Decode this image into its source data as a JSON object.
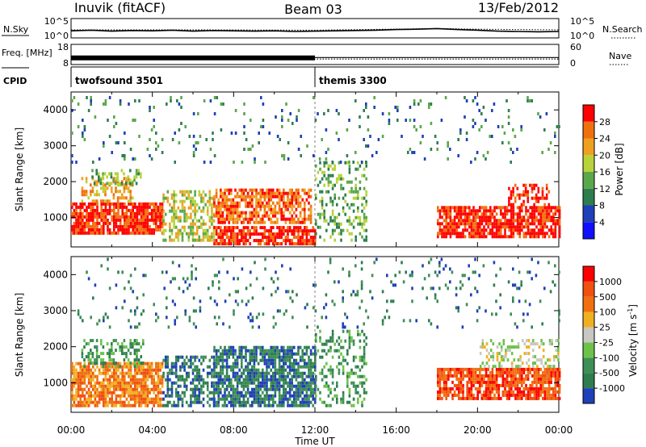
{
  "header": {
    "station": "Inuvik (fitACF)",
    "beam": "Beam 03",
    "date": "13/Feb/2012"
  },
  "chart_data": [
    {
      "type": "line",
      "panel": "noise",
      "ylabel_left": "N.Sky",
      "ylabel_right": "N.Search",
      "left_ticks": [
        "10^5",
        "10^0"
      ],
      "right_ticks": [
        "10^5",
        "10^0"
      ],
      "ylim": [
        0,
        5
      ],
      "series": [
        {
          "name": "N.Sky",
          "style": "solid",
          "x": [
            0,
            1,
            2,
            3,
            4,
            5,
            6,
            7,
            8,
            9,
            10,
            11,
            12,
            13,
            14,
            15,
            16,
            17,
            18,
            19,
            20,
            21,
            22,
            23,
            24
          ],
          "values": [
            1.7,
            1.9,
            1.6,
            1.8,
            1.7,
            1.9,
            1.6,
            1.8,
            1.7,
            1.6,
            1.7,
            1.5,
            1.6,
            1.7,
            1.8,
            1.9,
            2.1,
            2.2,
            2.4,
            2.1,
            1.9,
            1.6,
            1.5,
            1.4,
            1.5
          ]
        },
        {
          "name": "N.Search",
          "style": "dotted",
          "x": [
            0,
            6,
            12,
            18,
            20,
            24
          ],
          "values": [
            2.0,
            2.0,
            1.9,
            2.4,
            2.2,
            2.0
          ]
        }
      ]
    },
    {
      "type": "line",
      "panel": "frequency",
      "ylabel_left": "Freq. [MHz]",
      "ylabel_right": "Nave",
      "left_ticks": [
        "18",
        "8"
      ],
      "right_ticks": [
        "60",
        "0"
      ],
      "ylim": [
        8,
        18
      ],
      "series": [
        {
          "name": "Freq.",
          "style": "thick",
          "x": [
            0,
            12
          ],
          "values": [
            11,
            11
          ]
        },
        {
          "name": "Freq.",
          "style": "solid",
          "x": [
            12,
            24
          ],
          "values": [
            11.2,
            11.2
          ]
        },
        {
          "name": "Nave",
          "style": "dotted",
          "x": [
            0,
            24
          ],
          "values": [
            10.3,
            10.3
          ]
        }
      ]
    },
    {
      "type": "table",
      "panel": "cpid",
      "label": "CPID",
      "segments": [
        {
          "start": 0,
          "end": 12,
          "name": "twofsound 3501"
        },
        {
          "start": 12,
          "end": 24,
          "name": "themis 3300"
        }
      ]
    },
    {
      "type": "heatmap",
      "panel": "power",
      "ylabel": "Slant Range [km]",
      "xlim": [
        0,
        24
      ],
      "ylim": [
        180,
        4500
      ],
      "yticks": [
        1000,
        2000,
        3000,
        4000
      ],
      "colorbar": {
        "label": "Power [dB]",
        "ticks": [
          "4",
          "8",
          "12",
          "16",
          "20",
          "24",
          "28"
        ],
        "colors": [
          "#1010ff",
          "#1f40b8",
          "#2e7d4f",
          "#5aa84a",
          "#b8d23c",
          "#f0a020",
          "#f07010",
          "#ff0000"
        ]
      },
      "regions": [
        {
          "t0": 0.0,
          "t1": 4.5,
          "r0": 500,
          "r1": 1400,
          "level": 7,
          "density": 0.85
        },
        {
          "t0": 0.5,
          "t1": 3.0,
          "r0": 1400,
          "r1": 2100,
          "level": 5,
          "density": 0.45
        },
        {
          "t0": 1.0,
          "t1": 3.5,
          "r0": 1900,
          "r1": 2300,
          "level": 3,
          "density": 0.4
        },
        {
          "t0": 4.5,
          "t1": 7.0,
          "r0": 300,
          "r1": 1700,
          "level": 4,
          "density": 0.55
        },
        {
          "t0": 7.0,
          "t1": 11.8,
          "r0": 800,
          "r1": 1800,
          "level": 6,
          "density": 0.7
        },
        {
          "t0": 7.0,
          "t1": 12.0,
          "r0": 200,
          "r1": 700,
          "level": 7,
          "density": 0.7
        },
        {
          "t0": 12.0,
          "t1": 14.5,
          "r0": 300,
          "r1": 2500,
          "level": 3,
          "density": 0.3
        },
        {
          "t0": 18.0,
          "t1": 24.0,
          "r0": 400,
          "r1": 1300,
          "level": 7,
          "density": 0.8
        },
        {
          "t0": 21.5,
          "t1": 23.5,
          "r0": 1300,
          "r1": 1900,
          "level": 7,
          "density": 0.5
        },
        {
          "t0": 0.0,
          "t1": 24.0,
          "r0": 2500,
          "r1": 4400,
          "level": 2,
          "density": 0.06
        }
      ]
    },
    {
      "type": "heatmap",
      "panel": "velocity",
      "ylabel": "Slant Range [km]",
      "xlabel": "Time UT",
      "xlim": [
        0,
        24
      ],
      "ylim": [
        180,
        4500
      ],
      "xticks": [
        "00:00",
        "04:00",
        "08:00",
        "12:00",
        "16:00",
        "20:00",
        "00:00"
      ],
      "yticks": [
        1000,
        2000,
        3000,
        4000
      ],
      "colorbar": {
        "label": "Velocity [m s^-1]",
        "ticks": [
          "1000",
          "500",
          "100",
          "25",
          "-25",
          "-100",
          "-500",
          "-1000"
        ],
        "colors": [
          "#1f40b8",
          "#2e7d4f",
          "#3d8f55",
          "#6cc24a",
          "#c8c8c0",
          "#f0b020",
          "#f07010",
          "#f05010",
          "#ff0000"
        ]
      },
      "regions": [
        {
          "t0": 0.0,
          "t1": 4.5,
          "r0": 300,
          "r1": 1500,
          "level": 6,
          "density": 0.8
        },
        {
          "t0": 0.5,
          "t1": 3.5,
          "r0": 1400,
          "r1": 2200,
          "level": 2,
          "density": 0.45
        },
        {
          "t0": 4.5,
          "t1": 7.0,
          "r0": 300,
          "r1": 1700,
          "level": 1,
          "density": 0.55
        },
        {
          "t0": 7.0,
          "t1": 12.0,
          "r0": 300,
          "r1": 2000,
          "level": 1,
          "density": 0.75
        },
        {
          "t0": 12.0,
          "t1": 14.5,
          "r0": 300,
          "r1": 2400,
          "level": 2,
          "density": 0.3
        },
        {
          "t0": 18.0,
          "t1": 24.0,
          "r0": 500,
          "r1": 1400,
          "level": 7,
          "density": 0.8
        },
        {
          "t0": 20.0,
          "t1": 24.0,
          "r0": 1400,
          "r1": 2200,
          "level": 4,
          "density": 0.35
        },
        {
          "t0": 0.0,
          "t1": 24.0,
          "r0": 2500,
          "r1": 4400,
          "level": 1,
          "density": 0.06
        }
      ]
    }
  ]
}
